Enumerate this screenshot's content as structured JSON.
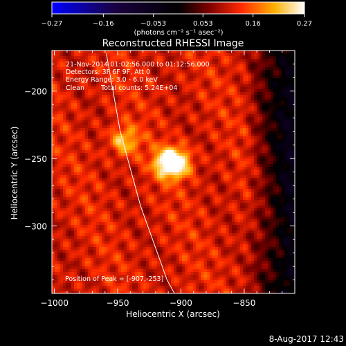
{
  "chart_data": {
    "type": "heatmap",
    "title": "Reconstructed RHESSI Image",
    "xlabel": "Heliocentric X (arcsec)",
    "ylabel": "Heliocentric Y (arcsec)",
    "xlim": [
      -1002,
      -810
    ],
    "ylim": [
      -350,
      -170
    ],
    "x_ticks": [
      -1000,
      -950,
      -900,
      -850
    ],
    "x_tick_labels": [
      "−1000",
      "−950",
      "−900",
      "−850"
    ],
    "y_ticks": [
      -200,
      -250,
      -300
    ],
    "y_tick_labels": [
      "−200",
      "−250",
      "−300"
    ],
    "colorbar": {
      "range": [
        -0.27,
        0.27
      ],
      "ticks": [
        -0.27,
        -0.16,
        -0.053,
        0.053,
        0.16,
        0.27
      ],
      "tick_labels": [
        "−0.27",
        "−0.16",
        "−0.053",
        "0.053",
        "0.16",
        "0.27"
      ],
      "unit_label": "(photons cm⁻² s⁻¹ asec⁻²)",
      "colors": [
        "#0000ff",
        "#000000",
        "#7a0000",
        "#ff2a00",
        "#ffc000",
        "#ffffff"
      ]
    },
    "sources": [
      {
        "name": "peak",
        "x": -907,
        "y": -253,
        "value": 0.27
      },
      {
        "name": "secondary",
        "x": -945,
        "y": -237,
        "value": 0.17
      }
    ],
    "limb_curve": [
      [
        -959,
        -172
      ],
      [
        -948,
        -230
      ],
      [
        -932,
        -285
      ],
      [
        -911,
        -340
      ],
      [
        -904,
        -352
      ]
    ],
    "annotations": {
      "time_range": "21-Nov-2014 01:02:56.000 to 01:12:56.000",
      "detectors": "Detectors: 3F 6F 9F, Att 0",
      "energy_range": "Energy Range: 3.0 - 6.0 keV",
      "algorithm": "Clean",
      "total_counts": "Total counts: 5.24E+04",
      "peak_position": "Position of Peak = [-907,-253]"
    }
  },
  "footer": {
    "timestamp": "8-Aug-2017 12:43"
  }
}
